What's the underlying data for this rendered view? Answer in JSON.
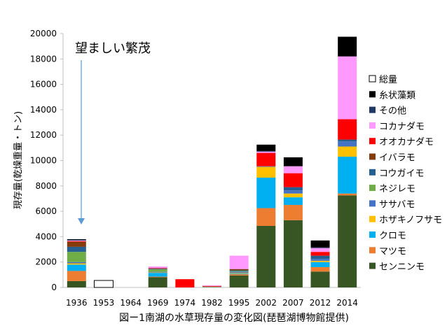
{
  "chart_data": {
    "type": "bar",
    "stacked": true,
    "ylabel": "現存量(乾燥重量・トン)",
    "xlabel": "図ー1南湖の水草現存量の変化図(琵琶湖博物館提供)",
    "annotation": "望ましい繁茂",
    "ylim": [
      0,
      20000
    ],
    "yticks": [
      0,
      2000,
      4000,
      6000,
      8000,
      10000,
      12000,
      14000,
      16000,
      18000,
      20000
    ],
    "ytick_labels": [
      "0",
      "2000",
      "4000",
      "6000",
      "8000",
      "10000",
      "12000",
      "14000",
      "16000",
      "18000",
      "20000"
    ],
    "grid": false,
    "legend_position": "right",
    "categories": [
      "1936",
      "1953",
      "1964",
      "1969",
      "1974",
      "1982",
      "1995",
      "2002",
      "2007",
      "2012",
      "2014"
    ],
    "series": [
      {
        "name": "センニンモ",
        "color": "#375623",
        "values": [
          500,
          0,
          0,
          800,
          0,
          0,
          950,
          4850,
          5300,
          1250,
          7250
        ]
      },
      {
        "name": "マツモ",
        "color": "#ED7D31",
        "values": [
          800,
          0,
          0,
          50,
          0,
          30,
          100,
          1400,
          1200,
          350,
          150
        ]
      },
      {
        "name": "クロモ",
        "color": "#00B0F0",
        "values": [
          500,
          0,
          0,
          300,
          0,
          20,
          50,
          2400,
          600,
          400,
          2900
        ]
      },
      {
        "name": "ホザキノフサモ",
        "color": "#FFC000",
        "values": [
          100,
          0,
          0,
          30,
          0,
          0,
          50,
          850,
          300,
          100,
          800
        ]
      },
      {
        "name": "ササバモ",
        "color": "#4472C4",
        "values": [
          100,
          0,
          0,
          50,
          0,
          0,
          100,
          50,
          250,
          150,
          400
        ]
      },
      {
        "name": "ネジレモ",
        "color": "#70AD47",
        "values": [
          800,
          0,
          0,
          200,
          0,
          20,
          50,
          0,
          0,
          0,
          0
        ]
      },
      {
        "name": "コウガイモ",
        "color": "#255E91",
        "values": [
          400,
          0,
          0,
          50,
          0,
          0,
          50,
          0,
          250,
          250,
          150
        ]
      },
      {
        "name": "イバラモ",
        "color": "#843C0C",
        "values": [
          400,
          0,
          0,
          0,
          0,
          0,
          100,
          0,
          0,
          0,
          0
        ]
      },
      {
        "name": "オオカナダモ",
        "color": "#FF0000",
        "values": [
          50,
          0,
          0,
          50,
          650,
          50,
          0,
          1050,
          1100,
          300,
          1600
        ]
      },
      {
        "name": "コカナダモ",
        "color": "#FF99FF",
        "values": [
          50,
          0,
          0,
          120,
          0,
          50,
          1050,
          100,
          550,
          300,
          4950
        ]
      },
      {
        "name": "その他",
        "color": "#203864",
        "values": [
          50,
          0,
          0,
          0,
          0,
          0,
          0,
          50,
          0,
          50,
          0
        ]
      },
      {
        "name": "糸状藻類",
        "color": "#000000",
        "values": [
          50,
          0,
          0,
          0,
          0,
          0,
          0,
          500,
          700,
          550,
          1550
        ]
      },
      {
        "name": "総量",
        "color": "#FFFFFF",
        "outline": true,
        "values": [
          0,
          550,
          0,
          0,
          0,
          0,
          0,
          0,
          0,
          0,
          0
        ]
      }
    ],
    "legend_order": [
      "総量",
      "糸状藻類",
      "その他",
      "コカナダモ",
      "オオカナダモ",
      "イバラモ",
      "コウガイモ",
      "ネジレモ",
      "ササバモ",
      "ホザキノフサモ",
      "クロモ",
      "マツモ",
      "センニンモ"
    ]
  }
}
